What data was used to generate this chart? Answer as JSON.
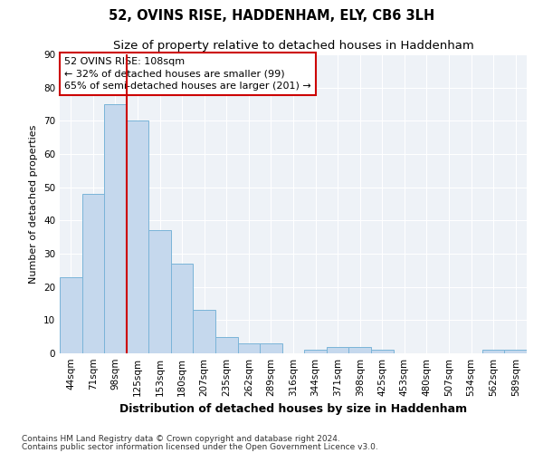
{
  "title": "52, OVINS RISE, HADDENHAM, ELY, CB6 3LH",
  "subtitle": "Size of property relative to detached houses in Haddenham",
  "xlabel": "Distribution of detached houses by size in Haddenham",
  "ylabel": "Number of detached properties",
  "categories": [
    "44sqm",
    "71sqm",
    "98sqm",
    "125sqm",
    "153sqm",
    "180sqm",
    "207sqm",
    "235sqm",
    "262sqm",
    "289sqm",
    "316sqm",
    "344sqm",
    "371sqm",
    "398sqm",
    "425sqm",
    "453sqm",
    "480sqm",
    "507sqm",
    "534sqm",
    "562sqm",
    "589sqm"
  ],
  "values": [
    23,
    48,
    75,
    70,
    37,
    27,
    13,
    5,
    3,
    3,
    0,
    1,
    2,
    2,
    1,
    0,
    0,
    0,
    0,
    1,
    1
  ],
  "bar_color": "#c5d8ed",
  "bar_edge_color": "#7ab4d8",
  "highlight_index": 2,
  "highlight_color": "#cc0000",
  "annotation_text": "52 OVINS RISE: 108sqm\n← 32% of detached houses are smaller (99)\n65% of semi-detached houses are larger (201) →",
  "annotation_box_color": "#ffffff",
  "annotation_box_edge": "#cc0000",
  "ylim": [
    0,
    90
  ],
  "yticks": [
    0,
    10,
    20,
    30,
    40,
    50,
    60,
    70,
    80,
    90
  ],
  "background_color": "#eef2f7",
  "footer1": "Contains HM Land Registry data © Crown copyright and database right 2024.",
  "footer2": "Contains public sector information licensed under the Open Government Licence v3.0.",
  "title_fontsize": 10.5,
  "subtitle_fontsize": 9.5,
  "xlabel_fontsize": 9,
  "ylabel_fontsize": 8,
  "tick_fontsize": 7.5,
  "annot_fontsize": 8,
  "footer_fontsize": 6.5
}
